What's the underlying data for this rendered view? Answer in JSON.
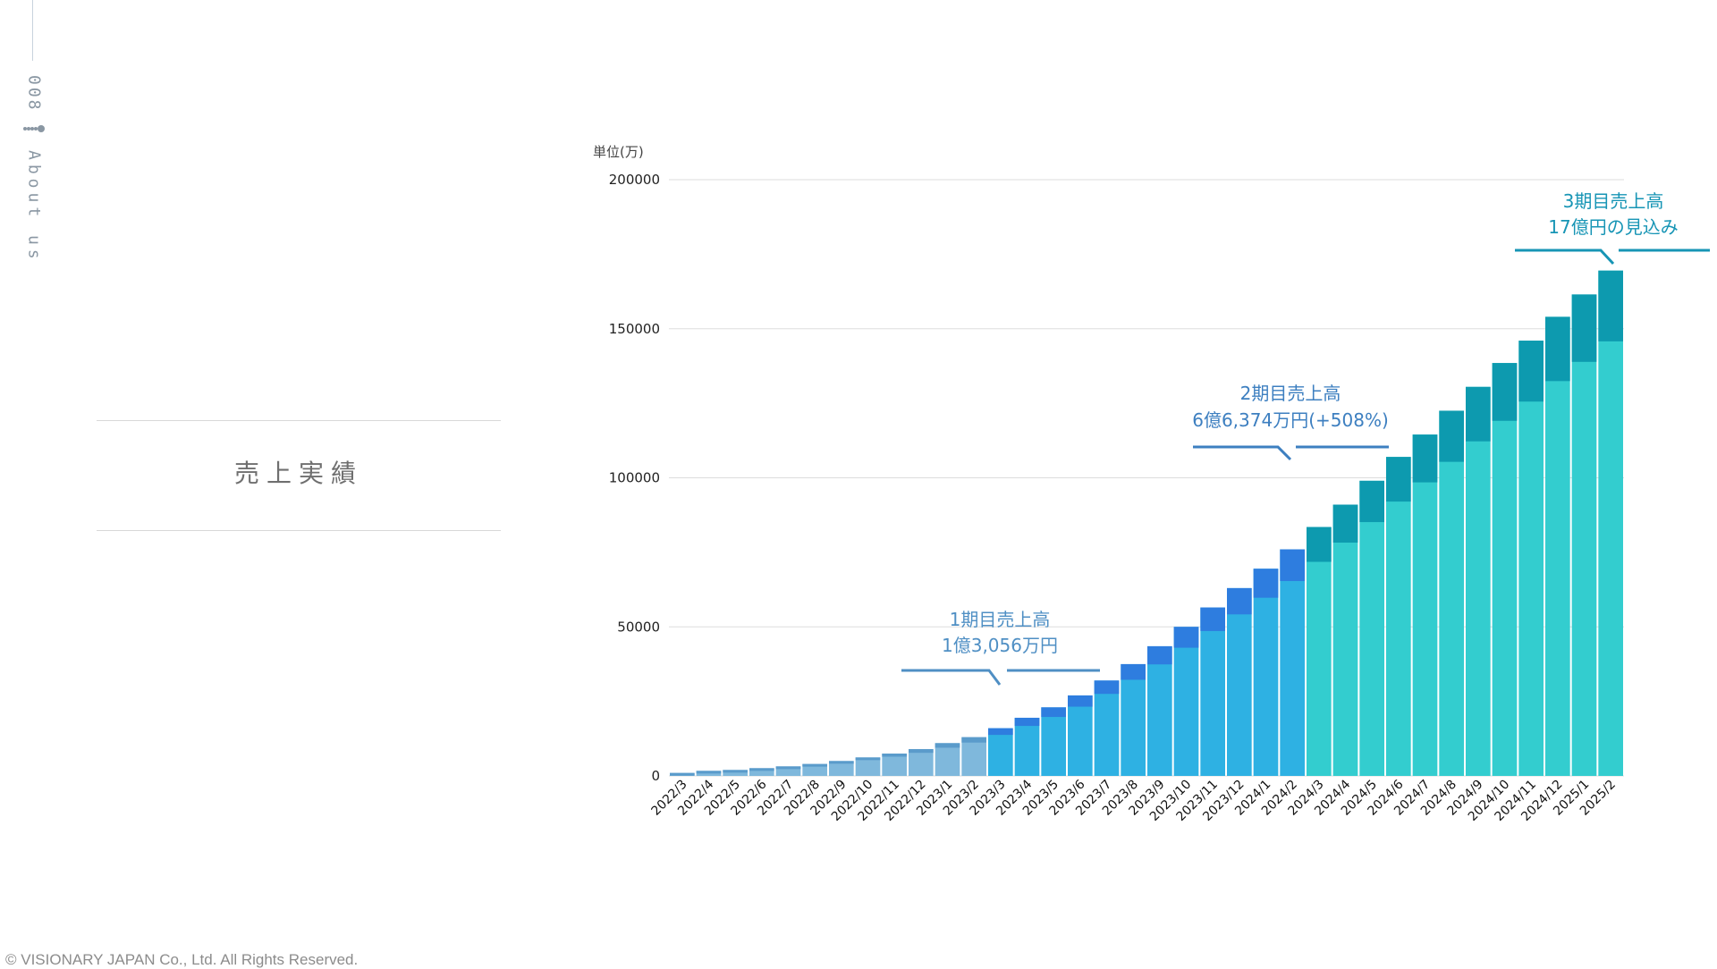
{
  "side": {
    "page_number": "008",
    "section": "About us"
  },
  "page": {
    "title": "売上実績"
  },
  "footer": {
    "copyright": "© VISIONARY JAPAN Co., Ltd. All Rights Reserved."
  },
  "colors": {
    "period1": "#7fb8dc",
    "period2": "#2eb1e3",
    "period3": "#33cdcf",
    "cap1": "#5a9bcb",
    "cap2": "#2e7ddf",
    "cap3": "#0d9aaf",
    "grid": "#dddddd",
    "annotation1": "#4f8fc4",
    "annotation2": "#3d7fc0",
    "annotation3": "#1795b5"
  },
  "chart_data": {
    "type": "bar",
    "unit_label": "単位(万)",
    "ylim": [
      0,
      200000
    ],
    "yticks": [
      "0",
      "50000",
      "100000",
      "150000",
      "200000"
    ],
    "grid": true,
    "categories": [
      "2022/3",
      "2022/4",
      "2022/5",
      "2022/6",
      "2022/7",
      "2022/8",
      "2022/9",
      "2022/10",
      "2022/11",
      "2022/12",
      "2023/1",
      "2023/2",
      "2023/3",
      "2023/4",
      "2023/5",
      "2023/6",
      "2023/7",
      "2023/8",
      "2023/9",
      "2023/10",
      "2023/11",
      "2023/12",
      "2024/1",
      "2024/2",
      "2024/3",
      "2024/4",
      "2024/5",
      "2024/6",
      "2024/7",
      "2024/8",
      "2024/9",
      "2024/10",
      "2024/11",
      "2024/12",
      "2025/1",
      "2025/2"
    ],
    "values": [
      1000,
      1700,
      2000,
      2600,
      3200,
      4000,
      5000,
      6200,
      7500,
      9000,
      11000,
      13000,
      16000,
      19500,
      23000,
      27000,
      32000,
      37500,
      43500,
      50000,
      56500,
      63000,
      69500,
      76000,
      83500,
      91000,
      99000,
      107000,
      114500,
      122500,
      130500,
      138500,
      146000,
      154000,
      161500,
      169500
    ],
    "period": [
      1,
      1,
      1,
      1,
      1,
      1,
      1,
      1,
      1,
      1,
      1,
      1,
      2,
      2,
      2,
      2,
      2,
      2,
      2,
      2,
      2,
      2,
      2,
      2,
      3,
      3,
      3,
      3,
      3,
      3,
      3,
      3,
      3,
      3,
      3,
      3
    ],
    "annotations": [
      {
        "line1": "1期目売上高",
        "line2": "1億3,056万円"
      },
      {
        "line1": "2期目売上高",
        "line2": "6億6,374万円(+508%)"
      },
      {
        "line1": "3期目売上高",
        "line2": "17億円の見込み"
      }
    ]
  }
}
